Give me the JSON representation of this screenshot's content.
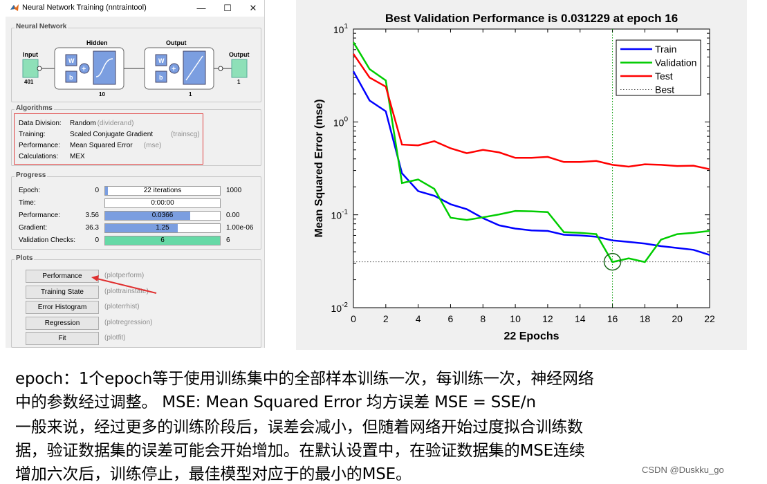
{
  "window": {
    "title": "Neural Network Training (nntraintool)",
    "minimize": "—",
    "maximize": "☐",
    "close": "✕"
  },
  "network": {
    "title": "Neural Network",
    "input_label": "Input",
    "input_size": "401",
    "hidden_label": "Hidden",
    "hidden_size": "10",
    "output_layer_label": "Output",
    "output_layer_size": "1",
    "output_label": "Output",
    "output_size": "1",
    "w_label": "W",
    "b_label": "b",
    "plus": "+"
  },
  "algorithms": {
    "title": "Algorithms",
    "rows": [
      {
        "label": "Data Division:",
        "value": "Random",
        "fn": "(dividerand)"
      },
      {
        "label": "Training:",
        "value": "Scaled Conjugate Gradient",
        "fn": "(trainscg)"
      },
      {
        "label": "Performance:",
        "value": "Mean Squared Error",
        "fn": "(mse)"
      },
      {
        "label": "Calculations:",
        "value": "MEX",
        "fn": ""
      }
    ]
  },
  "progress": {
    "title": "Progress",
    "rows": [
      {
        "label": "Epoch:",
        "start": "0",
        "bar": "22 iterations",
        "end": "1000",
        "fill": 0.022,
        "color": "#7b9ee0"
      },
      {
        "label": "Time:",
        "start": "",
        "bar": "0:00:00",
        "end": "",
        "fill": 0,
        "color": "#7b9ee0"
      },
      {
        "label": "Performance:",
        "start": "3.56",
        "bar": "0.0366",
        "end": "0.00",
        "fill": 0.74,
        "color": "#7b9ee0"
      },
      {
        "label": "Gradient:",
        "start": "36.3",
        "bar": "1.25",
        "end": "1.00e-06",
        "fill": 0.63,
        "color": "#7b9ee0"
      },
      {
        "label": "Validation Checks:",
        "start": "0",
        "bar": "6",
        "end": "6",
        "fill": 1.0,
        "color": "#66d9a6"
      }
    ]
  },
  "plots": {
    "title": "Plots",
    "buttons": [
      {
        "label": "Performance",
        "fn": "(plotperform)"
      },
      {
        "label": "Training State",
        "fn": "(plottrainstate)"
      },
      {
        "label": "Error Histogram",
        "fn": "(ploterrhist)"
      },
      {
        "label": "Regression",
        "fn": "(plotregression)"
      },
      {
        "label": "Fit",
        "fn": "(plotfit)"
      }
    ]
  },
  "chart_data": {
    "type": "line",
    "title": "Best Validation Performance is 0.031229 at epoch 16",
    "xlabel": "22 Epochs",
    "ylabel": "Mean Squared Error  (mse)",
    "yscale": "log",
    "xlim": [
      0,
      22
    ],
    "ylim": [
      0.01,
      10
    ],
    "xticks": [
      0,
      2,
      4,
      6,
      8,
      10,
      12,
      14,
      16,
      18,
      20,
      22
    ],
    "yticks": [
      {
        "value": 0.01,
        "base": "10",
        "exp": "-2"
      },
      {
        "value": 0.1,
        "base": "10",
        "exp": "-1"
      },
      {
        "value": 1,
        "base": "10",
        "exp": "0"
      },
      {
        "value": 10,
        "base": "10",
        "exp": "1"
      }
    ],
    "legend_position": "top-right",
    "x": [
      0,
      1,
      2,
      3,
      4,
      5,
      6,
      7,
      8,
      9,
      10,
      11,
      12,
      13,
      14,
      15,
      16,
      17,
      18,
      19,
      20,
      21,
      22
    ],
    "series": [
      {
        "name": "Train",
        "color": "#0000ff",
        "values": [
          3.5,
          1.7,
          1.3,
          0.28,
          0.18,
          0.16,
          0.13,
          0.115,
          0.092,
          0.077,
          0.071,
          0.068,
          0.067,
          0.061,
          0.06,
          0.058,
          0.053,
          0.051,
          0.049,
          0.046,
          0.044,
          0.042,
          0.037
        ]
      },
      {
        "name": "Validation",
        "color": "#00cc00",
        "values": [
          7.2,
          3.7,
          2.8,
          0.22,
          0.24,
          0.19,
          0.093,
          0.088,
          0.094,
          0.101,
          0.11,
          0.109,
          0.107,
          0.065,
          0.064,
          0.062,
          0.031,
          0.034,
          0.031,
          0.054,
          0.062,
          0.064,
          0.067
        ]
      },
      {
        "name": "Test",
        "color": "#ff0000",
        "values": [
          5.4,
          3.0,
          2.4,
          0.57,
          0.56,
          0.62,
          0.52,
          0.46,
          0.5,
          0.47,
          0.41,
          0.41,
          0.42,
          0.37,
          0.37,
          0.38,
          0.345,
          0.33,
          0.35,
          0.345,
          0.335,
          0.338,
          0.31
        ]
      }
    ],
    "best": {
      "name": "Best",
      "epoch": 16,
      "value": 0.031229,
      "color": "#009900"
    }
  },
  "caption": {
    "line1": "epoch：1个epoch等于使用训练集中的全部样本训练一次，每训练一次，神经网络",
    "line2": "中的参数经过调整。 MSE: Mean Squared Error   均方误差   MSE = SSE/n",
    "line3": "一般来说，经过更多的训练阶段后，误差会减小，但随着网络开始过度拟合训练数",
    "line4": "据，验证数据集的误差可能会开始增加。在默认设置中，在验证数据集的MSE连续",
    "line5": "增加六次后，训练停止，最佳模型对应于的最小的MSE。"
  },
  "credit": "CSDN @Duskku_go"
}
